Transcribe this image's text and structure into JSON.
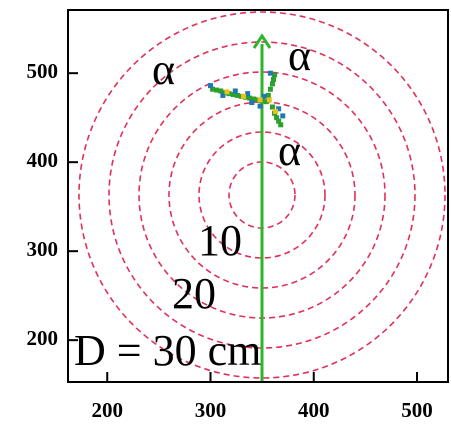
{
  "chart_data": {
    "type": "scatter",
    "xlim": [
      162,
      530
    ],
    "ylim": [
      153,
      571
    ],
    "xticks": [
      200,
      300,
      400,
      500
    ],
    "yticks": [
      200,
      300,
      400,
      500
    ],
    "annotations": [
      "α",
      "α",
      "α",
      "10",
      "20",
      "D = 30 cm"
    ],
    "series": [
      {
        "color": "#2ca02c",
        "x": [
          302,
          306,
          310,
          314,
          318,
          322,
          326,
          330,
          334,
          338,
          342,
          346,
          350,
          354,
          356,
          358,
          360,
          361,
          362,
          360,
          362,
          364,
          366,
          368
        ],
        "y": [
          482,
          481,
          480,
          478,
          477,
          476,
          475,
          474,
          473,
          472,
          471,
          470,
          469,
          468,
          475,
          482,
          488,
          493,
          498,
          462,
          455,
          450,
          446,
          442
        ]
      },
      {
        "color": "#1f77b4",
        "x": [
          300,
          312,
          324,
          340,
          352,
          366,
          370,
          348,
          358,
          336
        ],
        "y": [
          486,
          475,
          480,
          467,
          474,
          460,
          452,
          463,
          500,
          477
        ]
      },
      {
        "color": "#e8c21a",
        "x": [
          316,
          332,
          348,
          357,
          363
        ],
        "y": [
          479,
          474,
          470,
          470,
          457
        ]
      }
    ]
  }
}
